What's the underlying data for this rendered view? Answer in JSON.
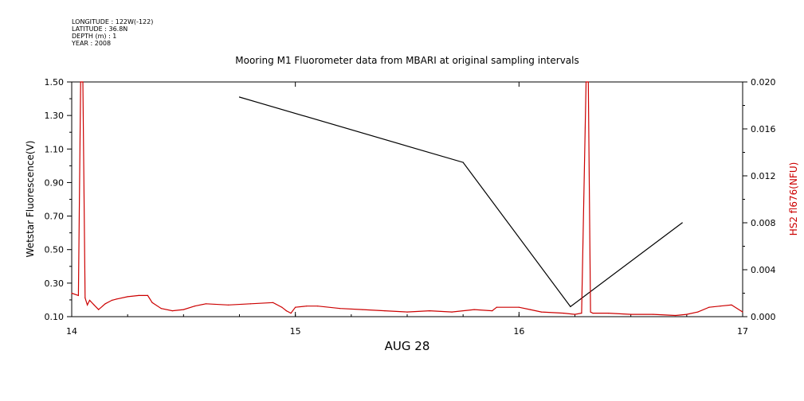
{
  "metadata": {
    "lines": [
      "LONGITUDE : 122W(-122)",
      "LATITUDE : 36.8N",
      "DEPTH (m) : 1",
      "YEAR : 2008"
    ]
  },
  "colors": {
    "left_series": "#000000",
    "right_series": "#cc0000",
    "right_axis_label": "#cc0000"
  },
  "chart_data": {
    "type": "line",
    "title": "Mooring M1 Fluorometer data from MBARI at original sampling intervals",
    "xlabel": "AUG 28",
    "ylabel_left": "Wetstar Fluorescence(V)",
    "ylabel_right": "HS2 fl676(NFU)",
    "xlim": [
      14,
      17
    ],
    "ylim_left": [
      0.1,
      1.5
    ],
    "ylim_right": [
      0.0,
      0.02
    ],
    "x_ticks": [
      "14",
      "15",
      "16",
      "17"
    ],
    "y_ticks_left": [
      "0.10",
      "0.30",
      "0.50",
      "0.70",
      "0.90",
      "1.10",
      "1.30",
      "1.50"
    ],
    "y_ticks_right": [
      "0.000",
      "0.004",
      "0.008",
      "0.012",
      "0.016",
      "0.020"
    ],
    "grid": false,
    "series": [
      {
        "axis": "left",
        "x": [
          14.75,
          15.75,
          16.23,
          16.73
        ],
        "y": [
          1.41,
          1.02,
          0.16,
          0.66
        ]
      },
      {
        "axis": "right",
        "x": [
          14.0,
          14.03,
          14.04,
          14.05,
          14.06,
          14.07,
          14.08,
          14.1,
          14.12,
          14.15,
          14.18,
          14.2,
          14.25,
          14.3,
          14.34,
          14.36,
          14.4,
          14.45,
          14.5,
          14.55,
          14.6,
          14.7,
          14.8,
          14.9,
          14.94,
          14.96,
          14.98,
          15.0,
          15.05,
          15.1,
          15.2,
          15.3,
          15.4,
          15.5,
          15.6,
          15.7,
          15.8,
          15.88,
          15.9,
          16.0,
          16.05,
          16.1,
          16.2,
          16.25,
          16.28,
          16.3,
          16.31,
          16.32,
          16.33,
          16.4,
          16.5,
          16.6,
          16.7,
          16.75,
          16.8,
          16.85,
          16.9,
          16.95,
          17.0
        ],
        "y": [
          0.002,
          0.0018,
          0.02,
          0.02,
          0.0016,
          0.001,
          0.0014,
          0.001,
          0.0006,
          0.0011,
          0.0014,
          0.0015,
          0.0017,
          0.0018,
          0.0018,
          0.0012,
          0.0007,
          0.0005,
          0.0006,
          0.0009,
          0.0011,
          0.001,
          0.0011,
          0.0012,
          0.0008,
          0.0005,
          0.0003,
          0.0008,
          0.0009,
          0.0009,
          0.0007,
          0.0006,
          0.0005,
          0.0004,
          0.0005,
          0.0004,
          0.0006,
          0.0005,
          0.0008,
          0.0008,
          0.0006,
          0.0004,
          0.0003,
          0.0002,
          0.0003,
          0.02,
          0.02,
          0.0004,
          0.0003,
          0.0003,
          0.0002,
          0.0002,
          0.0001,
          0.0002,
          0.0004,
          0.0008,
          0.0009,
          0.001,
          0.0004
        ]
      }
    ]
  }
}
